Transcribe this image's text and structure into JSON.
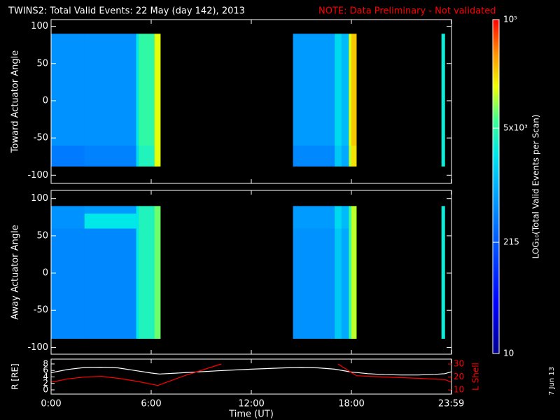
{
  "title": "TWINS2: Total Valid Events: 22 May (day 142), 2013",
  "note": "NOTE: Data Preliminary - Not validated",
  "date_stamp": "7 Jun 13",
  "chart_data": [
    {
      "type": "heatmap",
      "ylabel": "Toward Actuator Angle",
      "x_edges": [
        0,
        2,
        5.1,
        5.25,
        6.2,
        6.55,
        14.5,
        17.0,
        17.4,
        17.85,
        18.0,
        18.3,
        23.4,
        23.6
      ],
      "y_edges": [
        -88,
        -60,
        90
      ],
      "values": [
        [
          400,
          450,
          2000,
          4000,
          15000,
          null,
          500,
          1500,
          900,
          12000,
          20000,
          null,
          3000
        ],
        [
          600,
          600,
          2500,
          5000,
          15000,
          null,
          700,
          2000,
          1200,
          15000,
          25000,
          null,
          3000
        ]
      ],
      "xlim": [
        0,
        24
      ],
      "ylim": [
        -111,
        109
      ],
      "yticks": [
        -100,
        -50,
        0,
        50,
        100
      ]
    },
    {
      "type": "heatmap",
      "ylabel": "Away Actuator Angle",
      "x_edges": [
        0,
        2,
        5.1,
        5.25,
        6.2,
        6.55,
        14.5,
        17.0,
        17.4,
        17.85,
        18.0,
        18.3,
        23.4,
        23.6
      ],
      "y_edges": [
        -88,
        60,
        80,
        90
      ],
      "values": [
        [
          500,
          500,
          2500,
          4000,
          8000,
          null,
          600,
          1500,
          900,
          6000,
          12000,
          null,
          3000
        ],
        [
          600,
          2500,
          2500,
          4000,
          8000,
          null,
          700,
          2000,
          1200,
          6000,
          12000,
          null,
          3000
        ],
        [
          600,
          700,
          2500,
          4000,
          8000,
          null,
          700,
          2000,
          1200,
          6000,
          12000,
          null,
          3000
        ]
      ],
      "xlim": [
        0,
        24
      ],
      "ylim": [
        -109,
        111
      ],
      "yticks": [
        -100,
        -50,
        0,
        50,
        100
      ]
    },
    {
      "type": "line",
      "xlabel": "Time (UT)",
      "ylabel": "R [RE]",
      "y2label": "L Shell",
      "y2color": "#ff0000",
      "xlim": [
        0,
        24
      ],
      "xticks": [
        {
          "value": 0,
          "label": "0:00"
        },
        {
          "value": 6,
          "label": "6:00"
        },
        {
          "value": 12,
          "label": "12:00"
        },
        {
          "value": 18,
          "label": "18:00"
        },
        {
          "value": 23.983,
          "label": "23:59"
        }
      ],
      "ylim": [
        -1.3,
        9.5
      ],
      "yticks": [
        0,
        2,
        4,
        6,
        8
      ],
      "y2lim": [
        6.8,
        33.8
      ],
      "y2ticks": [
        10,
        20,
        30
      ],
      "series": [
        {
          "color": "#ffffff",
          "x": [
            0,
            1,
            2,
            3,
            4,
            5,
            6,
            6.5,
            8,
            10,
            12,
            14,
            15,
            16,
            17,
            18,
            19,
            20,
            21,
            22,
            23,
            23.6,
            24
          ],
          "values": [
            5.3,
            6.3,
            6.9,
            7.0,
            6.8,
            6.0,
            5.2,
            4.9,
            5.3,
            5.9,
            6.4,
            6.8,
            6.9,
            6.8,
            6.4,
            5.5,
            5.0,
            4.7,
            4.6,
            4.6,
            4.8,
            5.0,
            5.6
          ]
        },
        {
          "color": "#ff0000",
          "axis": "y2",
          "x": [
            0,
            1,
            2,
            3,
            4,
            5,
            6,
            6.4,
            8,
            10.2,
            14,
            17.2,
            18.3,
            20,
            22,
            23.6,
            24
          ],
          "values": [
            16,
            18.5,
            20,
            20.5,
            19,
            17,
            14.5,
            13.5,
            21,
            30,
            null,
            30,
            21,
            20,
            19,
            18,
            16
          ]
        }
      ]
    },
    {
      "type": "colorbar",
      "title": "LOG₁₀(Total Valid Events per Scan)",
      "lim": [
        10,
        100000
      ],
      "log": true,
      "ticks": [
        10,
        215,
        {
          "value": 5000,
          "label": "5x10³"
        },
        {
          "value": 100000,
          "label": "10⁵"
        }
      ]
    }
  ]
}
